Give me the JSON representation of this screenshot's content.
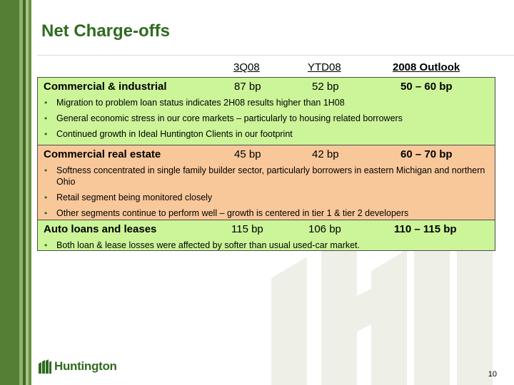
{
  "slide": {
    "title": "Net Charge-offs",
    "page_number": "10",
    "logo_text": "Huntington"
  },
  "columns": {
    "q": "3Q08",
    "ytd": "YTD08",
    "outlook": "2008 Outlook"
  },
  "sections": [
    {
      "label": "Commercial & industrial",
      "q": "87 bp",
      "ytd": "52 bp",
      "outlook": "50 – 60 bp",
      "bullets": [
        "Migration to problem loan status indicates 2H08 results higher than 1H08",
        "General economic stress in our core markets – particularly to housing related borrowers",
        "Continued growth in Ideal Huntington Clients in our footprint"
      ]
    },
    {
      "label": "Commercial real estate",
      "q": "45 bp",
      "ytd": "42 bp",
      "outlook": "60 – 70 bp",
      "bullets": [
        "Softness concentrated in single family builder sector, particularly borrowers in eastern Michigan and northern Ohio",
        "Retail segment being monitored closely",
        "Other segments continue to perform well – growth is centered in tier 1 & tier 2 developers"
      ]
    },
    {
      "label": "Auto loans and leases",
      "q": "115 bp",
      "ytd": "106 bp",
      "outlook": "110 – 115 bp",
      "bullets": [
        "Both loan & lease losses were affected by softer than usual used-car market."
      ]
    }
  ],
  "colors": {
    "brand_green": "#2f6b1f",
    "section_green": "#ccf599",
    "section_orange": "#f9c89a"
  }
}
